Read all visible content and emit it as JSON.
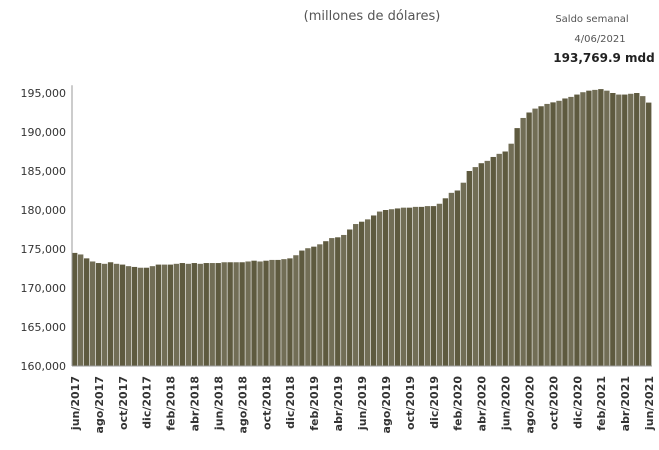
{
  "chart_data": {
    "type": "bar",
    "title": "(millones de dólares)",
    "annotations": [
      "Saldo semanal",
      "4/06/2021",
      "193,769.9 mdd"
    ],
    "color": "#5e5a3f",
    "categories": [
      "jun/2017",
      null,
      null,
      null,
      "ago/2017",
      null,
      null,
      null,
      "oct/2017",
      null,
      null,
      null,
      "dic/2017",
      null,
      null,
      null,
      "feb/2018",
      null,
      null,
      null,
      "abr/2018",
      null,
      null,
      null,
      "jun/2018",
      null,
      null,
      null,
      "ago/2018",
      null,
      null,
      null,
      "oct/2018",
      null,
      null,
      null,
      "dic/2018",
      null,
      null,
      null,
      "feb/2019",
      null,
      null,
      null,
      "abr/2019",
      null,
      null,
      null,
      "jun/2019",
      null,
      null,
      null,
      "ago/2019",
      null,
      null,
      null,
      "oct/2019",
      null,
      null,
      null,
      "dic/2019",
      null,
      null,
      null,
      "feb/2020",
      null,
      null,
      null,
      "abr/2020",
      null,
      null,
      null,
      "jun/2020",
      null,
      null,
      null,
      "ago/2020",
      null,
      null,
      null,
      "oct/2020",
      null,
      null,
      null,
      "dic/2020",
      null,
      null,
      null,
      "feb/2021",
      null,
      null,
      null,
      "abr/2021",
      null,
      null,
      null,
      "jun/2021"
    ],
    "values": [
      174500,
      174300,
      173800,
      173400,
      173200,
      173100,
      173300,
      173100,
      173000,
      172800,
      172700,
      172600,
      172600,
      172800,
      173000,
      173000,
      173000,
      173100,
      173200,
      173100,
      173200,
      173100,
      173200,
      173200,
      173200,
      173300,
      173300,
      173300,
      173300,
      173400,
      173500,
      173400,
      173500,
      173600,
      173600,
      173700,
      173800,
      174200,
      174800,
      175100,
      175300,
      175600,
      176000,
      176400,
      176500,
      176800,
      177500,
      178200,
      178500,
      178800,
      179300,
      179800,
      180000,
      180100,
      180200,
      180300,
      180300,
      180400,
      180400,
      180500,
      180500,
      180800,
      181500,
      182200,
      182500,
      183500,
      185000,
      185500,
      186000,
      186300,
      186800,
      187200,
      187500,
      188500,
      190500,
      191800,
      192500,
      193000,
      193300,
      193600,
      193800,
      194000,
      194300,
      194500,
      194800,
      195100,
      195300,
      195400,
      195500,
      195300,
      195000,
      194800,
      194800,
      194900,
      195000,
      194600,
      193769.9
    ],
    "ylim": [
      160000,
      196000
    ],
    "yticks": [
      {
        "value": 160000,
        "label": "160,000"
      },
      {
        "value": 165000,
        "label": "165,000"
      },
      {
        "value": 170000,
        "label": "170,000"
      },
      {
        "value": 175000,
        "label": "175,000"
      },
      {
        "value": 180000,
        "label": "180,000"
      },
      {
        "value": 185000,
        "label": "185,000"
      },
      {
        "value": 190000,
        "label": "190,000"
      },
      {
        "value": 195000,
        "label": "195,000"
      }
    ],
    "grid": false
  }
}
